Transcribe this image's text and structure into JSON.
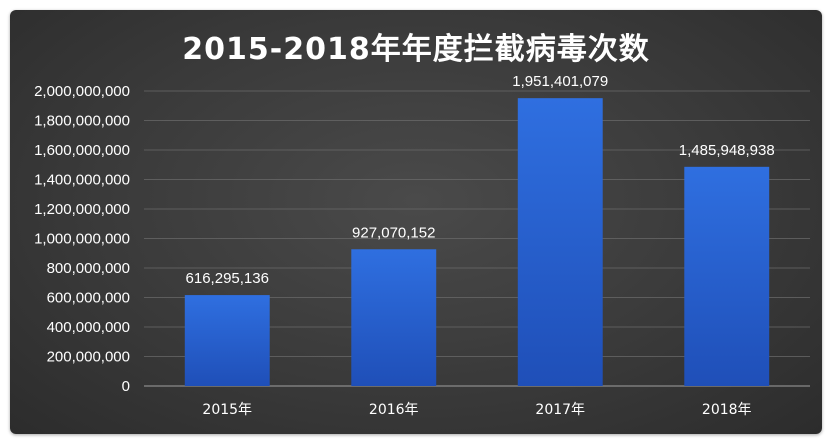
{
  "chart_data": {
    "type": "bar",
    "title": "2015-2018年年度拦截病毒次数",
    "categories": [
      "2015年",
      "2016年",
      "2017年",
      "2018年"
    ],
    "values": [
      616295136,
      927070152,
      1951401079,
      1485948938
    ],
    "data_labels": [
      "616,295,136",
      "927,070,152",
      "1,951,401,079",
      "1,485,948,938"
    ],
    "ylim": [
      0,
      2000000000
    ],
    "y_ticks": [
      0,
      200000000,
      400000000,
      600000000,
      800000000,
      1000000000,
      1200000000,
      1400000000,
      1600000000,
      1800000000,
      2000000000
    ],
    "y_tick_labels": [
      "0",
      "200,000,000",
      "400,000,000",
      "600,000,000",
      "800,000,000",
      "1,000,000,000",
      "1,200,000,000",
      "1,400,000,000",
      "1,600,000,000",
      "1,800,000,000",
      "2,000,000,000"
    ],
    "xlabel": "",
    "ylabel": "",
    "grid": true,
    "legend": "none",
    "colors": {
      "background": "#3a3a3a",
      "bar_top": "#2f6fe0",
      "bar_bottom": "#1f4fb8",
      "grid": "#6a6a6a",
      "text": "#ffffff"
    }
  }
}
